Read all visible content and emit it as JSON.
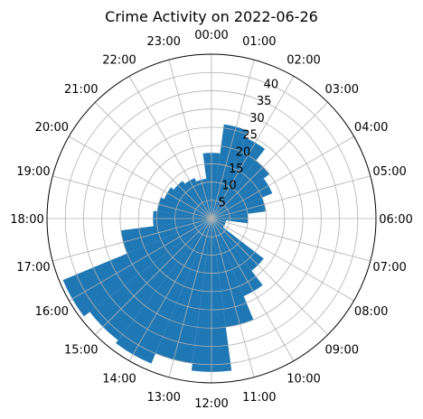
{
  "chart_data": {
    "type": "bar",
    "projection": "polar",
    "title": "Crime Activity on 2022-06-26",
    "categories": [
      "00:00",
      "01:00",
      "02:00",
      "03:00",
      "04:00",
      "05:00",
      "06:00",
      "07:00",
      "08:00",
      "09:00",
      "10:00",
      "11:00",
      "12:00",
      "13:00",
      "14:00",
      "15:00",
      "16:00",
      "17:00",
      "18:00",
      "19:00",
      "20:00",
      "21:00",
      "22:00",
      "23:00"
    ],
    "values": [
      18,
      26,
      24,
      20,
      18,
      15,
      10,
      4,
      4,
      18,
      23,
      30,
      42,
      40,
      43,
      42,
      44,
      25,
      16,
      15,
      14,
      13,
      12,
      11
    ],
    "rlim": [
      0,
      45
    ],
    "r_ticks": [
      5,
      10,
      15,
      20,
      25,
      30,
      35,
      40
    ],
    "theta_zero": "top",
    "direction": "clockwise",
    "grid": true,
    "color": "#1f77b4"
  }
}
